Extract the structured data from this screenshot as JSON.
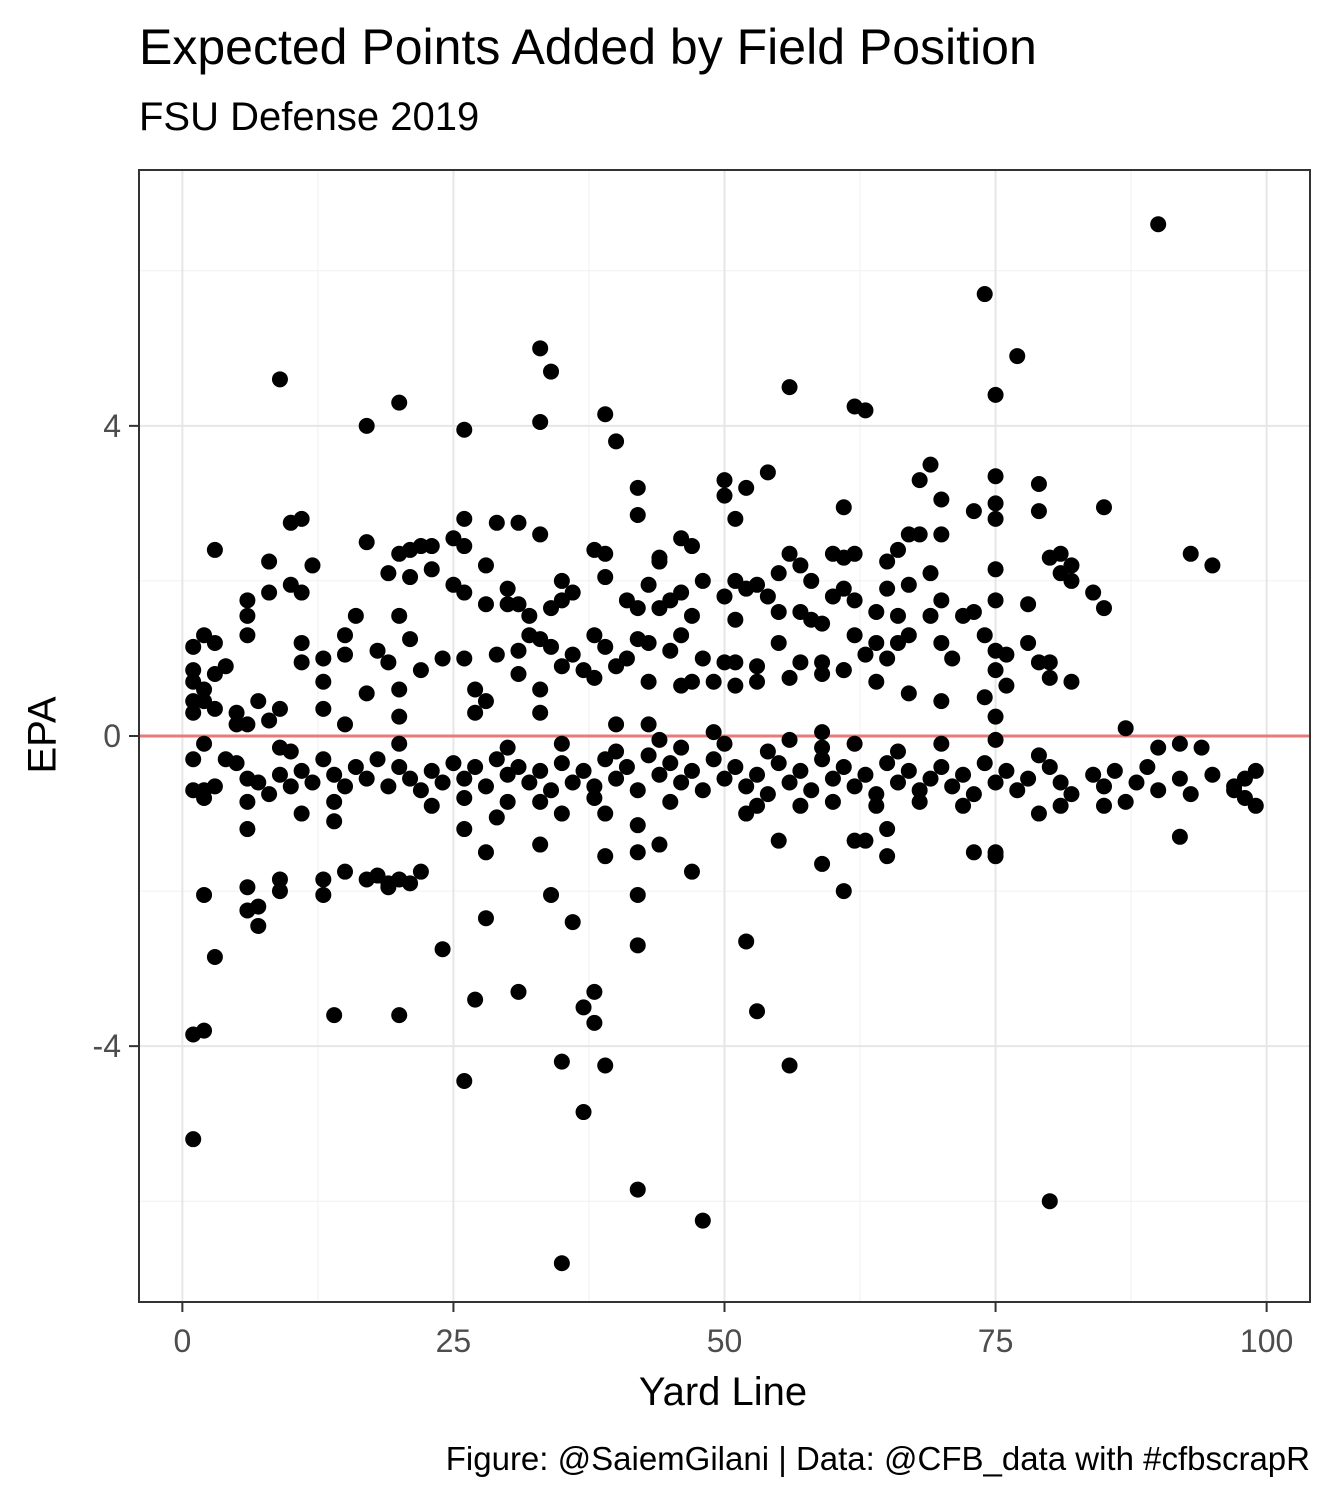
{
  "chart_data": {
    "type": "scatter",
    "title": "Expected Points Added by Field Position",
    "subtitle": "FSU Defense 2019",
    "caption": "Figure: @SaiemGilani | Data: @CFB_data with #cfbscrapR",
    "xlabel": "Yard Line",
    "ylabel": "EPA",
    "xlim": [
      -4,
      104
    ],
    "ylim": [
      -7.3,
      7.3
    ],
    "xticks": [
      0,
      25,
      50,
      75,
      100
    ],
    "xtick_labels": [
      "0",
      "25",
      "50",
      "75",
      "100"
    ],
    "yticks": [
      -4,
      0,
      4
    ],
    "ytick_labels": [
      "-4",
      "0",
      "4"
    ],
    "grid": true,
    "legend": "none",
    "reference_line": {
      "y": 0,
      "color": "#e87a7a"
    },
    "point_color": "#000000",
    "points": [
      [
        90,
        6.6
      ],
      [
        74,
        5.7
      ],
      [
        77,
        4.9
      ],
      [
        33,
        5.0
      ],
      [
        34,
        4.7
      ],
      [
        9,
        4.6
      ],
      [
        56,
        4.5
      ],
      [
        75,
        4.4
      ],
      [
        20,
        4.3
      ],
      [
        62,
        4.25
      ],
      [
        63,
        4.2
      ],
      [
        39,
        4.15
      ],
      [
        33,
        4.05
      ],
      [
        17,
        4.0
      ],
      [
        26,
        3.95
      ],
      [
        40,
        3.8
      ],
      [
        69,
        3.5
      ],
      [
        54,
        3.4
      ],
      [
        50,
        3.3
      ],
      [
        75,
        3.35
      ],
      [
        68,
        3.3
      ],
      [
        79,
        3.25
      ],
      [
        42,
        3.2
      ],
      [
        52,
        3.2
      ],
      [
        50,
        3.1
      ],
      [
        70,
        3.05
      ],
      [
        75,
        3.0
      ],
      [
        42,
        2.85
      ],
      [
        61,
        2.95
      ],
      [
        73,
        2.9
      ],
      [
        79,
        2.9
      ],
      [
        85,
        2.95
      ],
      [
        11,
        2.8
      ],
      [
        10,
        2.75
      ],
      [
        26,
        2.8
      ],
      [
        29,
        2.75
      ],
      [
        31,
        2.75
      ],
      [
        33,
        2.6
      ],
      [
        51,
        2.8
      ],
      [
        75,
        2.8
      ],
      [
        67,
        2.6
      ],
      [
        68,
        2.6
      ],
      [
        70,
        2.6
      ],
      [
        46,
        2.55
      ],
      [
        47,
        2.45
      ],
      [
        26,
        2.45
      ],
      [
        25,
        2.55
      ],
      [
        22,
        2.45
      ],
      [
        23,
        2.45
      ],
      [
        17,
        2.5
      ],
      [
        3,
        2.4
      ],
      [
        20,
        2.35
      ],
      [
        21,
        2.4
      ],
      [
        38,
        2.4
      ],
      [
        39,
        2.35
      ],
      [
        44,
        2.3
      ],
      [
        56,
        2.35
      ],
      [
        60,
        2.35
      ],
      [
        61,
        2.3
      ],
      [
        62,
        2.35
      ],
      [
        66,
        2.4
      ],
      [
        80,
        2.3
      ],
      [
        81,
        2.35
      ],
      [
        93,
        2.35
      ],
      [
        95,
        2.2
      ],
      [
        8,
        2.25
      ],
      [
        12,
        2.2
      ],
      [
        28,
        2.2
      ],
      [
        44,
        2.25
      ],
      [
        55,
        2.1
      ],
      [
        57,
        2.2
      ],
      [
        65,
        2.25
      ],
      [
        69,
        2.1
      ],
      [
        75,
        2.15
      ],
      [
        81,
        2.1
      ],
      [
        82,
        2.2
      ],
      [
        82,
        2.0
      ],
      [
        19,
        2.1
      ],
      [
        21,
        2.05
      ],
      [
        23,
        2.15
      ],
      [
        10,
        1.95
      ],
      [
        11,
        1.85
      ],
      [
        8,
        1.85
      ],
      [
        25,
        1.95
      ],
      [
        26,
        1.85
      ],
      [
        30,
        1.9
      ],
      [
        35,
        2.0
      ],
      [
        39,
        2.05
      ],
      [
        43,
        1.95
      ],
      [
        46,
        1.85
      ],
      [
        48,
        2.0
      ],
      [
        51,
        2.0
      ],
      [
        53,
        1.95
      ],
      [
        58,
        2.0
      ],
      [
        61,
        1.9
      ],
      [
        65,
        1.9
      ],
      [
        67,
        1.95
      ],
      [
        6,
        1.75
      ],
      [
        6,
        1.55
      ],
      [
        15,
        1.3
      ],
      [
        16,
        1.55
      ],
      [
        20,
        1.55
      ],
      [
        28,
        1.7
      ],
      [
        30,
        1.7
      ],
      [
        31,
        1.7
      ],
      [
        32,
        1.55
      ],
      [
        34,
        1.65
      ],
      [
        35,
        1.75
      ],
      [
        36,
        1.85
      ],
      [
        41,
        1.75
      ],
      [
        42,
        1.65
      ],
      [
        44,
        1.65
      ],
      [
        45,
        1.75
      ],
      [
        47,
        1.55
      ],
      [
        50,
        1.8
      ],
      [
        51,
        1.5
      ],
      [
        52,
        1.9
      ],
      [
        54,
        1.8
      ],
      [
        55,
        1.6
      ],
      [
        57,
        1.6
      ],
      [
        58,
        1.5
      ],
      [
        59,
        1.45
      ],
      [
        60,
        1.8
      ],
      [
        62,
        1.75
      ],
      [
        64,
        1.6
      ],
      [
        66,
        1.55
      ],
      [
        69,
        1.55
      ],
      [
        70,
        1.75
      ],
      [
        72,
        1.55
      ],
      [
        73,
        1.6
      ],
      [
        75,
        1.75
      ],
      [
        78,
        1.7
      ],
      [
        84,
        1.85
      ],
      [
        85,
        1.65
      ],
      [
        2,
        1.3
      ],
      [
        1,
        1.15
      ],
      [
        3,
        1.2
      ],
      [
        6,
        1.3
      ],
      [
        11,
        1.2
      ],
      [
        13,
        1.0
      ],
      [
        15,
        1.05
      ],
      [
        18,
        1.1
      ],
      [
        19,
        0.95
      ],
      [
        21,
        1.25
      ],
      [
        24,
        1.0
      ],
      [
        26,
        1.0
      ],
      [
        29,
        1.05
      ],
      [
        31,
        1.1
      ],
      [
        32,
        1.3
      ],
      [
        33,
        1.25
      ],
      [
        34,
        1.15
      ],
      [
        36,
        1.05
      ],
      [
        38,
        1.3
      ],
      [
        39,
        1.15
      ],
      [
        41,
        1.0
      ],
      [
        42,
        1.25
      ],
      [
        43,
        1.2
      ],
      [
        45,
        1.1
      ],
      [
        46,
        1.3
      ],
      [
        48,
        1.0
      ],
      [
        50,
        0.95
      ],
      [
        51,
        0.95
      ],
      [
        53,
        0.9
      ],
      [
        55,
        1.2
      ],
      [
        57,
        0.95
      ],
      [
        59,
        0.95
      ],
      [
        61,
        0.85
      ],
      [
        62,
        1.3
      ],
      [
        63,
        1.05
      ],
      [
        64,
        1.2
      ],
      [
        65,
        1.0
      ],
      [
        66,
        1.2
      ],
      [
        67,
        1.3
      ],
      [
        70,
        1.2
      ],
      [
        71,
        1.0
      ],
      [
        74,
        1.3
      ],
      [
        75,
        1.1
      ],
      [
        76,
        1.05
      ],
      [
        78,
        1.2
      ],
      [
        79,
        0.95
      ],
      [
        80,
        0.95
      ],
      [
        1,
        0.85
      ],
      [
        1,
        0.7
      ],
      [
        2,
        0.6
      ],
      [
        3,
        0.8
      ],
      [
        4,
        0.9
      ],
      [
        11,
        0.95
      ],
      [
        13,
        0.7
      ],
      [
        17,
        0.55
      ],
      [
        20,
        0.6
      ],
      [
        22,
        0.85
      ],
      [
        27,
        0.6
      ],
      [
        28,
        0.45
      ],
      [
        31,
        0.8
      ],
      [
        33,
        0.6
      ],
      [
        35,
        0.9
      ],
      [
        37,
        0.85
      ],
      [
        38,
        0.75
      ],
      [
        40,
        0.9
      ],
      [
        43,
        0.7
      ],
      [
        46,
        0.65
      ],
      [
        47,
        0.7
      ],
      [
        49,
        0.7
      ],
      [
        51,
        0.65
      ],
      [
        53,
        0.7
      ],
      [
        56,
        0.75
      ],
      [
        59,
        0.8
      ],
      [
        61,
        0.85
      ],
      [
        64,
        0.7
      ],
      [
        67,
        0.55
      ],
      [
        70,
        0.45
      ],
      [
        74,
        0.5
      ],
      [
        75,
        0.85
      ],
      [
        76,
        0.65
      ],
      [
        80,
        0.75
      ],
      [
        82,
        0.7
      ],
      [
        1,
        0.45
      ],
      [
        2,
        0.45
      ],
      [
        3,
        0.35
      ],
      [
        5,
        0.3
      ],
      [
        7,
        0.45
      ],
      [
        8,
        0.2
      ],
      [
        9,
        0.35
      ],
      [
        6,
        0.15
      ],
      [
        5,
        0.15
      ],
      [
        1,
        0.3
      ],
      [
        13,
        0.35
      ],
      [
        15,
        0.15
      ],
      [
        20,
        0.25
      ],
      [
        27,
        0.3
      ],
      [
        33,
        0.3
      ],
      [
        40,
        0.15
      ],
      [
        43,
        0.15
      ],
      [
        49,
        0.05
      ],
      [
        59,
        0.05
      ],
      [
        75,
        0.25
      ],
      [
        87,
        0.1
      ],
      [
        1,
        -0.7
      ],
      [
        1,
        -0.3
      ],
      [
        2,
        -0.1
      ],
      [
        2,
        -0.7
      ],
      [
        3,
        -0.65
      ],
      [
        4,
        -0.3
      ],
      [
        5,
        -0.35
      ],
      [
        6,
        -0.55
      ],
      [
        7,
        -0.6
      ],
      [
        8,
        -0.75
      ],
      [
        9,
        -0.5
      ],
      [
        10,
        -0.65
      ],
      [
        11,
        -0.45
      ],
      [
        12,
        -0.6
      ],
      [
        13,
        -0.3
      ],
      [
        14,
        -0.5
      ],
      [
        15,
        -0.65
      ],
      [
        16,
        -0.4
      ],
      [
        17,
        -0.55
      ],
      [
        18,
        -0.3
      ],
      [
        19,
        -0.65
      ],
      [
        20,
        -0.4
      ],
      [
        21,
        -0.55
      ],
      [
        22,
        -0.7
      ],
      [
        23,
        -0.45
      ],
      [
        24,
        -0.6
      ],
      [
        25,
        -0.35
      ],
      [
        26,
        -0.55
      ],
      [
        27,
        -0.4
      ],
      [
        28,
        -0.65
      ],
      [
        29,
        -0.3
      ],
      [
        30,
        -0.5
      ],
      [
        31,
        -0.4
      ],
      [
        32,
        -0.6
      ],
      [
        33,
        -0.45
      ],
      [
        34,
        -0.7
      ],
      [
        35,
        -0.35
      ],
      [
        36,
        -0.6
      ],
      [
        37,
        -0.45
      ],
      [
        38,
        -0.65
      ],
      [
        39,
        -0.3
      ],
      [
        40,
        -0.55
      ],
      [
        41,
        -0.4
      ],
      [
        42,
        -0.7
      ],
      [
        43,
        -0.25
      ],
      [
        44,
        -0.5
      ],
      [
        45,
        -0.35
      ],
      [
        46,
        -0.6
      ],
      [
        47,
        -0.45
      ],
      [
        48,
        -0.7
      ],
      [
        49,
        -0.3
      ],
      [
        50,
        -0.55
      ],
      [
        51,
        -0.4
      ],
      [
        52,
        -0.65
      ],
      [
        53,
        -0.5
      ],
      [
        54,
        -0.75
      ],
      [
        55,
        -0.35
      ],
      [
        56,
        -0.6
      ],
      [
        57,
        -0.45
      ],
      [
        58,
        -0.7
      ],
      [
        59,
        -0.3
      ],
      [
        60,
        -0.55
      ],
      [
        61,
        -0.4
      ],
      [
        62,
        -0.65
      ],
      [
        63,
        -0.5
      ],
      [
        64,
        -0.75
      ],
      [
        65,
        -0.35
      ],
      [
        66,
        -0.6
      ],
      [
        67,
        -0.45
      ],
      [
        68,
        -0.7
      ],
      [
        69,
        -0.55
      ],
      [
        70,
        -0.4
      ],
      [
        71,
        -0.65
      ],
      [
        72,
        -0.5
      ],
      [
        73,
        -0.75
      ],
      [
        74,
        -0.35
      ],
      [
        75,
        -0.6
      ],
      [
        76,
        -0.45
      ],
      [
        77,
        -0.7
      ],
      [
        78,
        -0.55
      ],
      [
        80,
        -0.4
      ],
      [
        81,
        -0.6
      ],
      [
        82,
        -0.75
      ],
      [
        84,
        -0.5
      ],
      [
        85,
        -0.65
      ],
      [
        86,
        -0.45
      ],
      [
        88,
        -0.6
      ],
      [
        89,
        -0.4
      ],
      [
        90,
        -0.7
      ],
      [
        92,
        -0.55
      ],
      [
        93,
        -0.75
      ],
      [
        95,
        -0.5
      ],
      [
        97,
        -0.65
      ],
      [
        98,
        -0.55
      ],
      [
        99,
        -0.45
      ],
      [
        9,
        -0.15
      ],
      [
        10,
        -0.2
      ],
      [
        20,
        -0.1
      ],
      [
        30,
        -0.15
      ],
      [
        35,
        -0.1
      ],
      [
        40,
        -0.2
      ],
      [
        44,
        -0.05
      ],
      [
        46,
        -0.15
      ],
      [
        50,
        -0.1
      ],
      [
        54,
        -0.2
      ],
      [
        56,
        -0.05
      ],
      [
        59,
        -0.15
      ],
      [
        62,
        -0.1
      ],
      [
        66,
        -0.2
      ],
      [
        70,
        -0.1
      ],
      [
        75,
        -0.05
      ],
      [
        79,
        -0.25
      ],
      [
        90,
        -0.15
      ],
      [
        92,
        -0.1
      ],
      [
        94,
        -0.15
      ],
      [
        2,
        -0.8
      ],
      [
        6,
        -0.85
      ],
      [
        14,
        -0.85
      ],
      [
        23,
        -0.9
      ],
      [
        26,
        -0.8
      ],
      [
        30,
        -0.85
      ],
      [
        33,
        -0.85
      ],
      [
        38,
        -0.8
      ],
      [
        45,
        -0.85
      ],
      [
        53,
        -0.9
      ],
      [
        57,
        -0.9
      ],
      [
        60,
        -0.85
      ],
      [
        64,
        -0.9
      ],
      [
        68,
        -0.85
      ],
      [
        72,
        -0.9
      ],
      [
        79,
        -1.0
      ],
      [
        81,
        -0.9
      ],
      [
        85,
        -0.9
      ],
      [
        87,
        -0.85
      ],
      [
        99,
        -0.9
      ],
      [
        6,
        -1.2
      ],
      [
        11,
        -1.0
      ],
      [
        14,
        -1.1
      ],
      [
        26,
        -1.2
      ],
      [
        29,
        -1.05
      ],
      [
        35,
        -1.0
      ],
      [
        39,
        -1.0
      ],
      [
        42,
        -1.15
      ],
      [
        52,
        -1.0
      ],
      [
        55,
        -1.35
      ],
      [
        62,
        -1.35
      ],
      [
        63,
        -1.35
      ],
      [
        65,
        -1.2
      ],
      [
        65,
        -1.55
      ],
      [
        73,
        -1.5
      ],
      [
        75,
        -1.5
      ],
      [
        75,
        -1.55
      ],
      [
        92,
        -1.3
      ],
      [
        97,
        -0.7
      ],
      [
        98,
        -0.8
      ],
      [
        9,
        -1.85
      ],
      [
        13,
        -1.85
      ],
      [
        15,
        -1.75
      ],
      [
        17,
        -1.85
      ],
      [
        18,
        -1.8
      ],
      [
        19,
        -1.9
      ],
      [
        20,
        -1.85
      ],
      [
        21,
        -1.9
      ],
      [
        22,
        -1.75
      ],
      [
        9,
        -2.0
      ],
      [
        13,
        -2.05
      ],
      [
        19,
        -1.95
      ],
      [
        28,
        -1.5
      ],
      [
        33,
        -1.4
      ],
      [
        39,
        -1.55
      ],
      [
        42,
        -1.5
      ],
      [
        42,
        -2.05
      ],
      [
        44,
        -1.4
      ],
      [
        47,
        -1.75
      ],
      [
        59,
        -1.65
      ],
      [
        61,
        -2.0
      ],
      [
        6,
        -1.95
      ],
      [
        6,
        -2.25
      ],
      [
        7,
        -2.2
      ],
      [
        7,
        -2.45
      ],
      [
        2,
        -2.05
      ],
      [
        3,
        -2.85
      ],
      [
        28,
        -2.35
      ],
      [
        24,
        -2.75
      ],
      [
        34,
        -2.05
      ],
      [
        36,
        -2.4
      ],
      [
        42,
        -2.7
      ],
      [
        52,
        -2.65
      ],
      [
        1,
        -3.85
      ],
      [
        2,
        -3.8
      ],
      [
        14,
        -3.6
      ],
      [
        20,
        -3.6
      ],
      [
        27,
        -3.4
      ],
      [
        31,
        -3.3
      ],
      [
        37,
        -3.5
      ],
      [
        38,
        -3.3
      ],
      [
        38,
        -3.7
      ],
      [
        53,
        -3.55
      ],
      [
        35,
        -4.2
      ],
      [
        39,
        -4.25
      ],
      [
        56,
        -4.25
      ],
      [
        26,
        -4.45
      ],
      [
        37,
        -4.85
      ],
      [
        1,
        -5.2
      ],
      [
        42,
        -5.85
      ],
      [
        48,
        -6.25
      ],
      [
        80,
        -6.0
      ],
      [
        35,
        -6.8
      ]
    ]
  }
}
